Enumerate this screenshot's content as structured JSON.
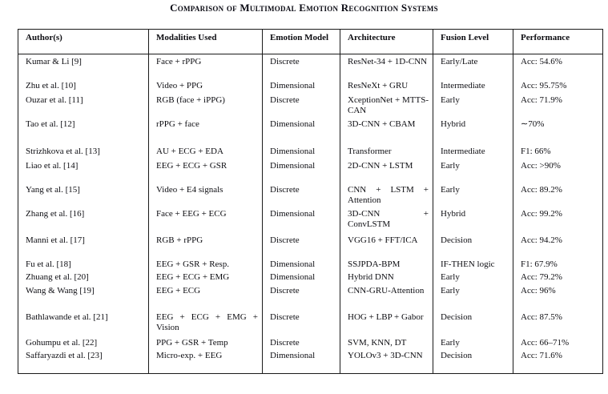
{
  "title": "Comparison of Multimodal Emotion Recognition Systems",
  "table": {
    "headers": [
      "Author(s)",
      "Modalities Used",
      "Emotion Model",
      "Architecture",
      "Fusion Level",
      "Performance"
    ],
    "rows": [
      {
        "author": "Kumar & Li [9]",
        "modalities": "Face + rPPG",
        "emotion_model": "Discrete",
        "architecture": "ResNet-34 + 1D-CNN",
        "fusion_level": "Early/Late",
        "performance": "Acc: 54.6%"
      },
      {
        "author": "Zhu et al. [10]",
        "modalities": "Video + PPG",
        "emotion_model": "Dimensional",
        "architecture": "ResNeXt + GRU",
        "fusion_level": "Intermediate",
        "performance": "Acc: 95.75%"
      },
      {
        "author": "Ouzar et al. [11]",
        "modalities": "RGB (face + iPPG)",
        "emotion_model": "Discrete",
        "architecture": "XceptionNet + MTTS-CAN",
        "fusion_level": "Early",
        "performance": "Acc: 71.9%"
      },
      {
        "author": "Tao et al. [12]",
        "modalities": "rPPG + face",
        "emotion_model": "Dimensional",
        "architecture": "3D-CNN + CBAM",
        "fusion_level": "Hybrid",
        "performance": "∼70%"
      },
      {
        "author": "Strizhkova et al. [13]",
        "modalities": "AU + ECG + EDA",
        "emotion_model": "Dimensional",
        "architecture": "Transformer",
        "fusion_level": "Intermediate",
        "performance": "F1: 66%"
      },
      {
        "author": "Liao et al. [14]",
        "modalities": "EEG + ECG + GSR",
        "emotion_model": "Dimensional",
        "architecture": "2D-CNN + LSTM",
        "fusion_level": "Early",
        "performance": "Acc: >90%"
      },
      {
        "author": "Yang et al. [15]",
        "modalities": "Video + E4 signals",
        "emotion_model": "Discrete",
        "architecture": "CNN + LSTM + Attention",
        "fusion_level": "Early",
        "performance": "Acc: 89.2%"
      },
      {
        "author": "Zhang et al. [16]",
        "modalities": "Face + EEG + ECG",
        "emotion_model": "Dimensional",
        "architecture": "3D-CNN + ConvLSTM",
        "fusion_level": "Hybrid",
        "performance": "Acc: 99.2%"
      },
      {
        "author": "Manni et al. [17]",
        "modalities": "RGB + rPPG",
        "emotion_model": "Discrete",
        "architecture": "VGG16 + FFT/ICA",
        "fusion_level": "Decision",
        "performance": "Acc: 94.2%"
      },
      {
        "author": "Fu et al. [18]",
        "modalities": "EEG + GSR + Resp.",
        "emotion_model": "Dimensional",
        "architecture": "SSJPDA-BPM",
        "fusion_level": "IF-THEN logic",
        "performance": "F1: 67.9%"
      },
      {
        "author": "Zhuang et al. [20]",
        "modalities": "EEG + ECG + EMG",
        "emotion_model": "Dimensional",
        "architecture": "Hybrid DNN",
        "fusion_level": "Early",
        "performance": "Acc: 79.2%"
      },
      {
        "author": "Wang & Wang [19]",
        "modalities": "EEG + ECG",
        "emotion_model": "Discrete",
        "architecture": "CNN-GRU-Attention",
        "fusion_level": "Early",
        "performance": "Acc: 96%"
      },
      {
        "author": "Bathlawande et al. [21]",
        "modalities": "EEG + ECG + EMG + Vision",
        "emotion_model": "Discrete",
        "architecture": "HOG + LBP + Gabor",
        "fusion_level": "Decision",
        "performance": "Acc: 87.5%"
      },
      {
        "author": "Gohumpu et al. [22]",
        "modalities": "PPG + GSR + Temp",
        "emotion_model": "Discrete",
        "architecture": "SVM, KNN, DT",
        "fusion_level": "Early",
        "performance": "Acc: 66–71%"
      },
      {
        "author": "Saffaryazdi et al. [23]",
        "modalities": "Micro-exp. + EEG",
        "emotion_model": "Dimensional",
        "architecture": "YOLOv3 + 3D-CNN",
        "fusion_level": "Decision",
        "performance": "Acc: 71.6%"
      }
    ]
  }
}
